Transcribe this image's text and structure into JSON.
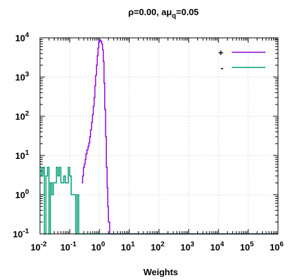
{
  "chart_data": {
    "type": "line",
    "title_parts": {
      "a": "ρ=0.00, aμ",
      "sub": "q",
      "b": "=0.05"
    },
    "xlabel": "Weights",
    "ylabel": "",
    "x_scale": "log",
    "y_scale": "log",
    "xlim": [
      0.01,
      1000000
    ],
    "ylim": [
      0.1,
      10000
    ],
    "x_ticks": [
      {
        "base": "10",
        "exp": "-2",
        "value": 0.01
      },
      {
        "base": "10",
        "exp": "-1",
        "value": 0.1
      },
      {
        "base": "10",
        "exp": "0",
        "value": 1
      },
      {
        "base": "10",
        "exp": "1",
        "value": 10
      },
      {
        "base": "10",
        "exp": "2",
        "value": 100
      },
      {
        "base": "10",
        "exp": "3",
        "value": 1000
      },
      {
        "base": "10",
        "exp": "4",
        "value": 10000
      },
      {
        "base": "10",
        "exp": "5",
        "value": 100000
      },
      {
        "base": "10",
        "exp": "6",
        "value": 1000000
      }
    ],
    "y_ticks": [
      {
        "base": "10",
        "exp": "-1",
        "value": 0.1
      },
      {
        "base": "10",
        "exp": "0",
        "value": 1
      },
      {
        "base": "10",
        "exp": "1",
        "value": 10
      },
      {
        "base": "10",
        "exp": "2",
        "value": 100
      },
      {
        "base": "10",
        "exp": "3",
        "value": 1000
      },
      {
        "base": "10",
        "exp": "4",
        "value": 10000
      }
    ],
    "grid": true,
    "legend_position": "top-right",
    "series": [
      {
        "name": "+",
        "color": "#9400d3",
        "step": true,
        "points": [
          [
            0.251,
            2
          ],
          [
            0.27,
            3
          ],
          [
            0.29,
            5
          ],
          [
            0.31,
            6
          ],
          [
            0.33,
            8
          ],
          [
            0.35,
            11
          ],
          [
            0.38,
            14
          ],
          [
            0.41,
            17
          ],
          [
            0.44,
            21
          ],
          [
            0.47,
            30
          ],
          [
            0.5,
            45
          ],
          [
            0.54,
            70
          ],
          [
            0.58,
            110
          ],
          [
            0.62,
            180
          ],
          [
            0.66,
            300
          ],
          [
            0.7,
            600
          ],
          [
            0.74,
            1100
          ],
          [
            0.79,
            2000
          ],
          [
            0.84,
            3500
          ],
          [
            0.89,
            5500
          ],
          [
            0.94,
            8000
          ],
          [
            1.0,
            9000
          ],
          [
            1.06,
            8500
          ],
          [
            1.12,
            8000
          ],
          [
            1.19,
            7000
          ],
          [
            1.26,
            5000
          ],
          [
            1.34,
            2500
          ],
          [
            1.42,
            700
          ],
          [
            1.5,
            150
          ],
          [
            1.6,
            30
          ],
          [
            1.7,
            5
          ],
          [
            1.8,
            1.5
          ],
          [
            1.9,
            0.5
          ],
          [
            2.0,
            0.2
          ],
          [
            2.2,
            0.1
          ]
        ]
      },
      {
        "name": "-",
        "color": "#009e73",
        "step": true,
        "points": [
          [
            0.01,
            5
          ],
          [
            0.0112,
            3
          ],
          [
            0.0125,
            5
          ],
          [
            0.014,
            0.1
          ],
          [
            0.0158,
            3
          ],
          [
            0.0178,
            5
          ],
          [
            0.02,
            0.1
          ],
          [
            0.0224,
            2
          ],
          [
            0.0251,
            1
          ],
          [
            0.0282,
            2
          ],
          [
            0.0316,
            2
          ],
          [
            0.0355,
            5
          ],
          [
            0.0398,
            3
          ],
          [
            0.0447,
            5
          ],
          [
            0.0501,
            2
          ],
          [
            0.0562,
            2
          ],
          [
            0.0631,
            3
          ],
          [
            0.0708,
            2
          ],
          [
            0.0794,
            2
          ],
          [
            0.0891,
            5
          ],
          [
            0.1,
            3
          ],
          [
            0.112,
            1
          ],
          [
            0.125,
            1
          ],
          [
            0.141,
            1
          ],
          [
            0.158,
            0.1
          ],
          [
            0.178,
            1
          ],
          [
            0.2,
            0.1
          ],
          [
            0.224,
            0.1
          ]
        ]
      }
    ]
  }
}
